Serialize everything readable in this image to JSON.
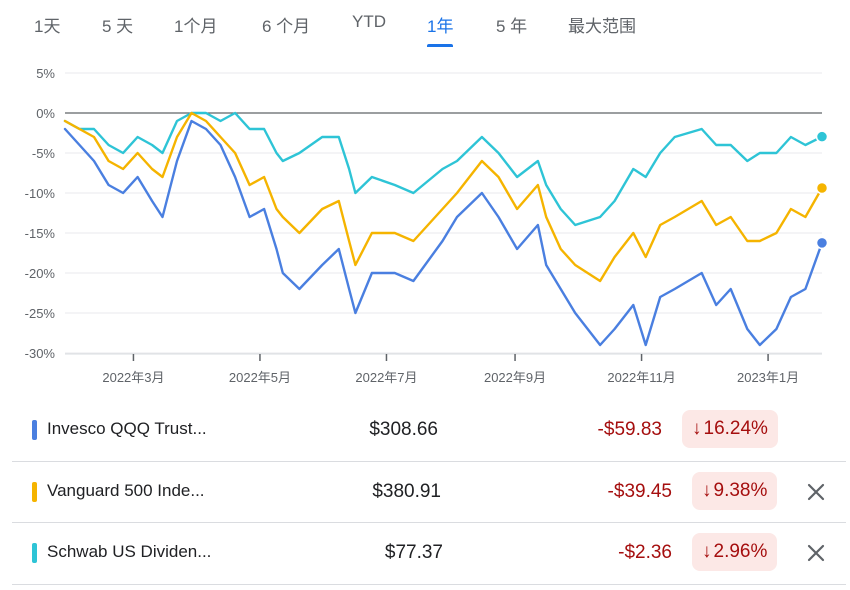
{
  "range_tabs": [
    {
      "label": "1天",
      "active": false
    },
    {
      "label": "5 天",
      "active": false
    },
    {
      "label": "1个月",
      "active": false
    },
    {
      "label": "6 个月",
      "active": false
    },
    {
      "label": "YTD",
      "active": false
    },
    {
      "label": "1年",
      "active": true
    },
    {
      "label": "5 年",
      "active": false
    },
    {
      "label": "最大范围",
      "active": false
    }
  ],
  "colors": {
    "accent": "#1a73e8",
    "negative": "#a50e0e",
    "negative_bg": "#fce8e6",
    "qqq": "#4a7fe0",
    "voo": "#f5b400",
    "schd": "#2ec4d6"
  },
  "chart_data": {
    "type": "line",
    "y_unit": "%",
    "ylim": [
      -30,
      5
    ],
    "y_ticks": [
      "5%",
      "0%",
      "-5%",
      "-10%",
      "-15%",
      "-20%",
      "-25%",
      "-30%"
    ],
    "y_tick_values": [
      5,
      0,
      -5,
      -10,
      -15,
      -20,
      -25,
      -30
    ],
    "x_range": [
      "2022-01-27",
      "2023-01-27"
    ],
    "x_ticks": [
      {
        "label": "2022年3月",
        "date": "2022-03-01"
      },
      {
        "label": "2022年5月",
        "date": "2022-05-01"
      },
      {
        "label": "2022年7月",
        "date": "2022-07-01"
      },
      {
        "label": "2022年9月",
        "date": "2022-09-01"
      },
      {
        "label": "2022年11月",
        "date": "2022-11-01"
      },
      {
        "label": "2023年1月",
        "date": "2023-01-01"
      }
    ],
    "grid": true,
    "baseline": 0,
    "series": [
      {
        "name": "Invesco QQQ Trust...",
        "color": "#4a7fe0",
        "points": [
          [
            "2022-01-27",
            -2
          ],
          [
            "2022-02-03",
            -4
          ],
          [
            "2022-02-10",
            -6
          ],
          [
            "2022-02-17",
            -9
          ],
          [
            "2022-02-24",
            -10
          ],
          [
            "2022-03-03",
            -8
          ],
          [
            "2022-03-10",
            -11
          ],
          [
            "2022-03-15",
            -13
          ],
          [
            "2022-03-22",
            -6
          ],
          [
            "2022-03-29",
            -1
          ],
          [
            "2022-04-05",
            -2
          ],
          [
            "2022-04-12",
            -4
          ],
          [
            "2022-04-19",
            -8
          ],
          [
            "2022-04-26",
            -13
          ],
          [
            "2022-05-03",
            -12
          ],
          [
            "2022-05-09",
            -17
          ],
          [
            "2022-05-12",
            -20
          ],
          [
            "2022-05-20",
            -22
          ],
          [
            "2022-05-31",
            -19
          ],
          [
            "2022-06-08",
            -17
          ],
          [
            "2022-06-13",
            -22
          ],
          [
            "2022-06-16",
            -25
          ],
          [
            "2022-06-24",
            -20
          ],
          [
            "2022-07-05",
            -20
          ],
          [
            "2022-07-14",
            -21
          ],
          [
            "2022-07-28",
            -16
          ],
          [
            "2022-08-04",
            -13
          ],
          [
            "2022-08-16",
            -10
          ],
          [
            "2022-08-24",
            -13
          ],
          [
            "2022-09-02",
            -17
          ],
          [
            "2022-09-12",
            -14
          ],
          [
            "2022-09-16",
            -19
          ],
          [
            "2022-09-23",
            -22
          ],
          [
            "2022-09-30",
            -25
          ],
          [
            "2022-10-12",
            -29
          ],
          [
            "2022-10-19",
            -27
          ],
          [
            "2022-10-28",
            -24
          ],
          [
            "2022-11-03",
            -29
          ],
          [
            "2022-11-10",
            -23
          ],
          [
            "2022-11-17",
            -22
          ],
          [
            "2022-11-30",
            -20
          ],
          [
            "2022-12-07",
            -24
          ],
          [
            "2022-12-14",
            -22
          ],
          [
            "2022-12-22",
            -27
          ],
          [
            "2022-12-28",
            -29
          ],
          [
            "2023-01-05",
            -27
          ],
          [
            "2023-01-12",
            -23
          ],
          [
            "2023-01-19",
            -22
          ],
          [
            "2023-01-27",
            -16.24
          ]
        ]
      },
      {
        "name": "Vanguard 500 Inde...",
        "color": "#f5b400",
        "points": [
          [
            "2022-01-27",
            -1
          ],
          [
            "2022-02-03",
            -2
          ],
          [
            "2022-02-10",
            -3
          ],
          [
            "2022-02-17",
            -6
          ],
          [
            "2022-02-24",
            -7
          ],
          [
            "2022-03-03",
            -5
          ],
          [
            "2022-03-10",
            -7
          ],
          [
            "2022-03-15",
            -8
          ],
          [
            "2022-03-22",
            -3
          ],
          [
            "2022-03-29",
            0
          ],
          [
            "2022-04-05",
            -1
          ],
          [
            "2022-04-12",
            -3
          ],
          [
            "2022-04-19",
            -5
          ],
          [
            "2022-04-26",
            -9
          ],
          [
            "2022-05-03",
            -8
          ],
          [
            "2022-05-09",
            -12
          ],
          [
            "2022-05-12",
            -13
          ],
          [
            "2022-05-20",
            -15
          ],
          [
            "2022-05-31",
            -12
          ],
          [
            "2022-06-08",
            -11
          ],
          [
            "2022-06-13",
            -16
          ],
          [
            "2022-06-16",
            -19
          ],
          [
            "2022-06-24",
            -15
          ],
          [
            "2022-07-05",
            -15
          ],
          [
            "2022-07-14",
            -16
          ],
          [
            "2022-07-28",
            -12
          ],
          [
            "2022-08-04",
            -10
          ],
          [
            "2022-08-16",
            -6
          ],
          [
            "2022-08-24",
            -8
          ],
          [
            "2022-09-02",
            -12
          ],
          [
            "2022-09-12",
            -9
          ],
          [
            "2022-09-16",
            -13
          ],
          [
            "2022-09-23",
            -17
          ],
          [
            "2022-09-30",
            -19
          ],
          [
            "2022-10-12",
            -21
          ],
          [
            "2022-10-19",
            -18
          ],
          [
            "2022-10-28",
            -15
          ],
          [
            "2022-11-03",
            -18
          ],
          [
            "2022-11-10",
            -14
          ],
          [
            "2022-11-17",
            -13
          ],
          [
            "2022-11-30",
            -11
          ],
          [
            "2022-12-07",
            -14
          ],
          [
            "2022-12-14",
            -13
          ],
          [
            "2022-12-22",
            -16
          ],
          [
            "2022-12-28",
            -16
          ],
          [
            "2023-01-05",
            -15
          ],
          [
            "2023-01-12",
            -12
          ],
          [
            "2023-01-19",
            -13
          ],
          [
            "2023-01-27",
            -9.38
          ]
        ]
      },
      {
        "name": "Schwab US Dividen...",
        "color": "#2ec4d6",
        "points": [
          [
            "2022-01-27",
            -1
          ],
          [
            "2022-02-03",
            -2
          ],
          [
            "2022-02-10",
            -2
          ],
          [
            "2022-02-17",
            -4
          ],
          [
            "2022-02-24",
            -5
          ],
          [
            "2022-03-03",
            -3
          ],
          [
            "2022-03-10",
            -4
          ],
          [
            "2022-03-15",
            -5
          ],
          [
            "2022-03-22",
            -1
          ],
          [
            "2022-03-29",
            0
          ],
          [
            "2022-04-05",
            0
          ],
          [
            "2022-04-12",
            -1
          ],
          [
            "2022-04-19",
            0
          ],
          [
            "2022-04-26",
            -2
          ],
          [
            "2022-05-03",
            -2
          ],
          [
            "2022-05-09",
            -5
          ],
          [
            "2022-05-12",
            -6
          ],
          [
            "2022-05-20",
            -5
          ],
          [
            "2022-05-31",
            -3
          ],
          [
            "2022-06-08",
            -3
          ],
          [
            "2022-06-13",
            -7
          ],
          [
            "2022-06-16",
            -10
          ],
          [
            "2022-06-24",
            -8
          ],
          [
            "2022-07-05",
            -9
          ],
          [
            "2022-07-14",
            -10
          ],
          [
            "2022-07-28",
            -7
          ],
          [
            "2022-08-04",
            -6
          ],
          [
            "2022-08-16",
            -3
          ],
          [
            "2022-08-24",
            -5
          ],
          [
            "2022-09-02",
            -8
          ],
          [
            "2022-09-12",
            -6
          ],
          [
            "2022-09-16",
            -9
          ],
          [
            "2022-09-23",
            -12
          ],
          [
            "2022-09-30",
            -14
          ],
          [
            "2022-10-12",
            -13
          ],
          [
            "2022-10-19",
            -11
          ],
          [
            "2022-10-28",
            -7
          ],
          [
            "2022-11-03",
            -8
          ],
          [
            "2022-11-10",
            -5
          ],
          [
            "2022-11-17",
            -3
          ],
          [
            "2022-11-30",
            -2
          ],
          [
            "2022-12-07",
            -4
          ],
          [
            "2022-12-14",
            -4
          ],
          [
            "2022-12-22",
            -6
          ],
          [
            "2022-12-28",
            -5
          ],
          [
            "2023-01-05",
            -5
          ],
          [
            "2023-01-12",
            -3
          ],
          [
            "2023-01-19",
            -4
          ],
          [
            "2023-01-27",
            -2.96
          ]
        ]
      }
    ]
  },
  "holdings": [
    {
      "name": "Invesco QQQ Trust...",
      "color": "#4a7fe0",
      "price": "$308.66",
      "change": "-$59.83",
      "arrow": "↓",
      "pct": "16.24%",
      "removable": false
    },
    {
      "name": "Vanguard 500 Inde...",
      "color": "#f5b400",
      "price": "$380.91",
      "change": "-$39.45",
      "arrow": "↓",
      "pct": "9.38%",
      "removable": true
    },
    {
      "name": "Schwab US Dividen...",
      "color": "#2ec4d6",
      "price": "$77.37",
      "change": "-$2.36",
      "arrow": "↓",
      "pct": "2.96%",
      "removable": true
    }
  ]
}
